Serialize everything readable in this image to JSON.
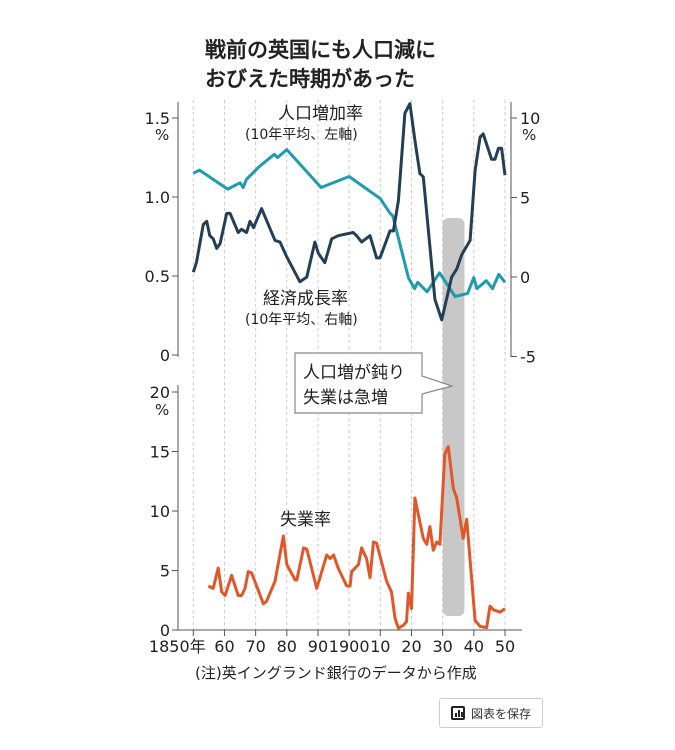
{
  "chart_data": [
    {
      "type": "line",
      "title": "戦前の英国にも人口減におびえた時期があった",
      "title_lines": [
        "戦前の英国にも人口減に",
        "おびえた時期があった"
      ],
      "x_ticks": [
        "1850年",
        "60",
        "70",
        "80",
        "90",
        "1900",
        "10",
        "20",
        "30",
        "40",
        "50"
      ],
      "xlim": [
        1850,
        1955
      ],
      "left_axis": {
        "unit": "%",
        "ticks": [
          "1.5",
          "1.0",
          "0.5",
          "0"
        ],
        "ylim": [
          0,
          1.5
        ]
      },
      "right_axis": {
        "unit": "%",
        "ticks": [
          "10",
          "5",
          "0",
          "-5"
        ],
        "ylim": [
          -5,
          10
        ]
      },
      "grid": "vertical dashed",
      "series": [
        {
          "name": "人口増加率",
          "note": "(10年平均、左軸)",
          "axis": "left",
          "color": "#1f9bad",
          "points": [
            [
              1850,
              1.15
            ],
            [
              1852,
              1.17
            ],
            [
              1861,
              1.05
            ],
            [
              1865,
              1.09
            ],
            [
              1866,
              1.06
            ],
            [
              1867,
              1.11
            ],
            [
              1871,
              1.19
            ],
            [
              1876,
              1.27
            ],
            [
              1877,
              1.25
            ],
            [
              1880,
              1.3
            ],
            [
              1891,
              1.06
            ],
            [
              1900,
              1.13
            ],
            [
              1910,
              0.99
            ],
            [
              1913,
              0.9
            ],
            [
              1914,
              0.88
            ],
            [
              1919,
              0.49
            ],
            [
              1921,
              0.42
            ],
            [
              1922,
              0.46
            ],
            [
              1925,
              0.4
            ],
            [
              1929,
              0.52
            ],
            [
              1930,
              0.49
            ],
            [
              1934,
              0.37
            ],
            [
              1938,
              0.39
            ],
            [
              1940,
              0.49
            ],
            [
              1941,
              0.42
            ],
            [
              1944,
              0.47
            ],
            [
              1946,
              0.42
            ],
            [
              1948,
              0.51
            ],
            [
              1950,
              0.46
            ]
          ]
        },
        {
          "name": "経済成長率",
          "note": "(10年平均、右軸)",
          "axis": "right",
          "color": "#243f55",
          "points": [
            [
              1850,
              0.3
            ],
            [
              1851,
              0.9
            ],
            [
              1853.2,
              3.3
            ],
            [
              1854.3,
              3.5
            ],
            [
              1855.3,
              2.6
            ],
            [
              1856.4,
              2.4
            ],
            [
              1857.5,
              1.8
            ],
            [
              1858.6,
              2.1
            ],
            [
              1860.7,
              4.0
            ],
            [
              1861.8,
              4.0
            ],
            [
              1864.4,
              2.8
            ],
            [
              1865.5,
              3.0
            ],
            [
              1867.1,
              2.8
            ],
            [
              1868.2,
              3.5
            ],
            [
              1869.3,
              3.1
            ],
            [
              1871.9,
              4.3
            ],
            [
              1876.2,
              2.3
            ],
            [
              1877.8,
              2.2
            ],
            [
              1879.9,
              1.3
            ],
            [
              1884.2,
              -0.3
            ],
            [
              1886.4,
              0
            ],
            [
              1889,
              2.2
            ],
            [
              1890.1,
              1.5
            ],
            [
              1892.2,
              0.9
            ],
            [
              1894.4,
              2.4
            ],
            [
              1896.5,
              2.6
            ],
            [
              1901.3,
              2.8
            ],
            [
              1902.4,
              2.6
            ],
            [
              1904,
              2.2
            ],
            [
              1906.7,
              2.6
            ],
            [
              1908.8,
              1.2
            ],
            [
              1909.9,
              1.2
            ],
            [
              1913.1,
              2.9
            ],
            [
              1914.2,
              2.9
            ],
            [
              1915.8,
              4.8
            ],
            [
              1917.9,
              10.3
            ],
            [
              1919.5,
              10.9
            ],
            [
              1921.1,
              8.6
            ],
            [
              1922.7,
              6.5
            ],
            [
              1923.8,
              6.3
            ],
            [
              1927.5,
              -1.4
            ],
            [
              1929.7,
              -2.7
            ],
            [
              1932.9,
              0
            ],
            [
              1934.5,
              0.5
            ],
            [
              1936.1,
              1.4
            ],
            [
              1938.8,
              2.3
            ],
            [
              1940.4,
              6.7
            ],
            [
              1942,
              8.8
            ],
            [
              1943,
              9.0
            ],
            [
              1945.7,
              7.4
            ],
            [
              1946.8,
              7.4
            ],
            [
              1947.9,
              8.1
            ],
            [
              1948.9,
              8.1
            ],
            [
              1950,
              6.4
            ]
          ]
        }
      ]
    },
    {
      "type": "line",
      "yaxis": {
        "unit": "%",
        "ticks": [
          "20",
          "15",
          "10",
          "5",
          "0"
        ],
        "ylim": [
          0,
          20
        ]
      },
      "series": [
        {
          "name": "失業率",
          "color": "#e0582a",
          "points": [
            [
              1854.8,
              3.7
            ],
            [
              1856.4,
              3.5
            ],
            [
              1858,
              5.2
            ],
            [
              1859.1,
              3.2
            ],
            [
              1860.2,
              2.9
            ],
            [
              1862.3,
              4.6
            ],
            [
              1864.4,
              2.9
            ],
            [
              1865.5,
              2.9
            ],
            [
              1866.6,
              3.5
            ],
            [
              1867.6,
              4.9
            ],
            [
              1868.7,
              4.8
            ],
            [
              1872.5,
              2.2
            ],
            [
              1873.5,
              2.4
            ],
            [
              1876.2,
              4.1
            ],
            [
              1878.9,
              7.9
            ],
            [
              1880,
              5.5
            ],
            [
              1882.7,
              4.2
            ],
            [
              1883.2,
              4.2
            ],
            [
              1885.4,
              6.9
            ],
            [
              1886.4,
              6.8
            ],
            [
              1889.6,
              3.5
            ],
            [
              1892.8,
              6.3
            ],
            [
              1893.9,
              6.0
            ],
            [
              1895,
              6.3
            ],
            [
              1896.5,
              5.2
            ],
            [
              1899.2,
              3.7
            ],
            [
              1900.3,
              3.7
            ],
            [
              1900.8,
              4.9
            ],
            [
              1903,
              5.5
            ],
            [
              1904,
              6.9
            ],
            [
              1905.6,
              6.0
            ],
            [
              1906.7,
              4.4
            ],
            [
              1907.8,
              7.4
            ],
            [
              1908.8,
              7.3
            ],
            [
              1912,
              4.1
            ],
            [
              1913.6,
              3.2
            ],
            [
              1914.7,
              1.0
            ],
            [
              1915.8,
              0.15
            ],
            [
              1917.4,
              0.4
            ],
            [
              1918.4,
              0.7
            ],
            [
              1919,
              3.1
            ],
            [
              1920,
              1.8
            ],
            [
              1921.1,
              11.1
            ],
            [
              1922.2,
              9.7
            ],
            [
              1923.8,
              7.7
            ],
            [
              1924.9,
              7.2
            ],
            [
              1925.9,
              8.7
            ],
            [
              1927,
              6.7
            ],
            [
              1928.1,
              7.4
            ],
            [
              1929.1,
              7.2
            ],
            [
              1930.7,
              14.8
            ],
            [
              1931.8,
              15.4
            ],
            [
              1933.4,
              11.9
            ],
            [
              1934.5,
              11.1
            ],
            [
              1936.6,
              7.7
            ],
            [
              1937.7,
              9.3
            ],
            [
              1940.4,
              0.8
            ],
            [
              1942,
              0.3
            ],
            [
              1944.1,
              0.2
            ],
            [
              1945.2,
              2.0
            ],
            [
              1946.3,
              1.7
            ],
            [
              1948.4,
              1.5
            ],
            [
              1950,
              1.8
            ]
          ]
        }
      ]
    }
  ],
  "highlight": {
    "range": [
      1930,
      1937
    ],
    "color": "#c8c8c8",
    "callout": [
      "人口増が鈍り",
      "失業は急増"
    ]
  },
  "note": "(注)英イングランド銀行のデータから作成",
  "save_button": {
    "label": "図表を保存",
    "icon": "bar-chart-icon"
  }
}
